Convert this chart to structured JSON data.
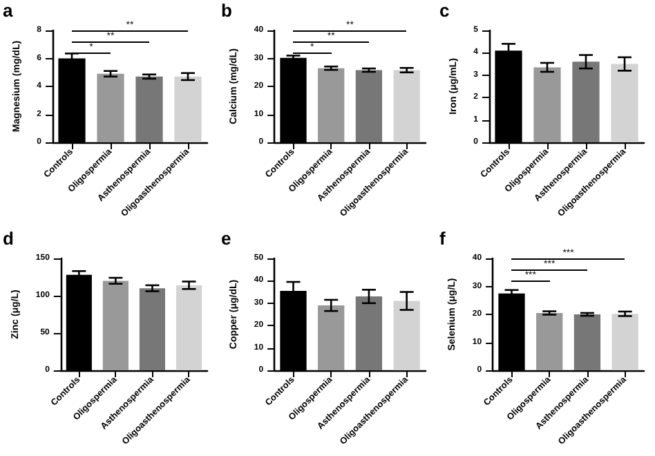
{
  "chart_data": [
    {
      "type": "bar",
      "title": "a",
      "ylabel": "Magnesium (mg/dL)",
      "categories": [
        "Controls",
        "Oligospermia",
        "Asthenospermia",
        "Oligoasthenospermia"
      ],
      "values": [
        6.0,
        4.9,
        4.7,
        4.7
      ],
      "colors": [
        "#000000",
        "#999999",
        "#777777",
        "#d3d3d3"
      ],
      "errors": [
        0.35,
        0.2,
        0.15,
        0.25
      ],
      "ylim": [
        0,
        8
      ],
      "yticks": [
        0,
        2,
        4,
        6,
        8
      ],
      "annotations": [
        "*",
        "**",
        "**"
      ]
    },
    {
      "type": "bar",
      "title": "b",
      "ylabel": "Calcium (mg/dL)",
      "categories": [
        "Controls",
        "Oligospermia",
        "Asthenospermia",
        "Oligoasthenospermia"
      ],
      "values": [
        30.2,
        26.5,
        25.8,
        25.8
      ],
      "colors": [
        "#000000",
        "#999999",
        "#777777",
        "#d3d3d3"
      ],
      "errors": [
        0.8,
        0.6,
        0.6,
        0.8
      ],
      "ylim": [
        0,
        40
      ],
      "yticks": [
        0,
        10,
        20,
        30,
        40
      ],
      "annotations": [
        "*",
        "**",
        "**"
      ]
    },
    {
      "type": "bar",
      "title": "c",
      "ylabel": "Iron (μg/mL)",
      "categories": [
        "Controls",
        "Oligospermia",
        "Asthenospermia",
        "Oligoasthenospermia"
      ],
      "values": [
        4.1,
        3.35,
        3.6,
        3.5
      ],
      "colors": [
        "#000000",
        "#999999",
        "#777777",
        "#d3d3d3"
      ],
      "errors": [
        0.3,
        0.2,
        0.3,
        0.3
      ],
      "ylim": [
        0,
        5
      ],
      "yticks": [
        0,
        1,
        2,
        3,
        4,
        5
      ]
    },
    {
      "type": "bar",
      "title": "d",
      "ylabel": "Zinc (μg/L)",
      "categories": [
        "Controls",
        "Oligospermia",
        "Asthenospermia",
        "Oligoasthenospermia"
      ],
      "values": [
        128,
        120,
        110,
        114
      ],
      "colors": [
        "#000000",
        "#999999",
        "#777777",
        "#d3d3d3"
      ],
      "errors": [
        5,
        4,
        4,
        5
      ],
      "ylim": [
        0,
        150
      ],
      "yticks": [
        0,
        50,
        100,
        150
      ]
    },
    {
      "type": "bar",
      "title": "e",
      "ylabel": "Copper (μg/dL)",
      "categories": [
        "Controls",
        "Oligospermia",
        "Asthenospermia",
        "Oligoasthenospermia"
      ],
      "values": [
        35.5,
        29,
        33,
        31
      ],
      "colors": [
        "#000000",
        "#999999",
        "#777777",
        "#d3d3d3"
      ],
      "errors": [
        4,
        2.5,
        3,
        4
      ],
      "ylim": [
        0,
        50
      ],
      "yticks": [
        0,
        10,
        20,
        30,
        40,
        50
      ]
    },
    {
      "type": "bar",
      "title": "f",
      "ylabel": "Selenium (μg/L)",
      "categories": [
        "Controls",
        "Oligospermia",
        "Asthenospermia",
        "Oligoasthenospermia"
      ],
      "values": [
        27.5,
        20.5,
        20.0,
        20.2
      ],
      "colors": [
        "#000000",
        "#999999",
        "#777777",
        "#d3d3d3"
      ],
      "errors": [
        1.2,
        0.6,
        0.5,
        0.8
      ],
      "ylim": [
        0,
        40
      ],
      "yticks": [
        0,
        10,
        20,
        30,
        40
      ],
      "annotations": [
        "***",
        "***",
        "***"
      ]
    }
  ]
}
